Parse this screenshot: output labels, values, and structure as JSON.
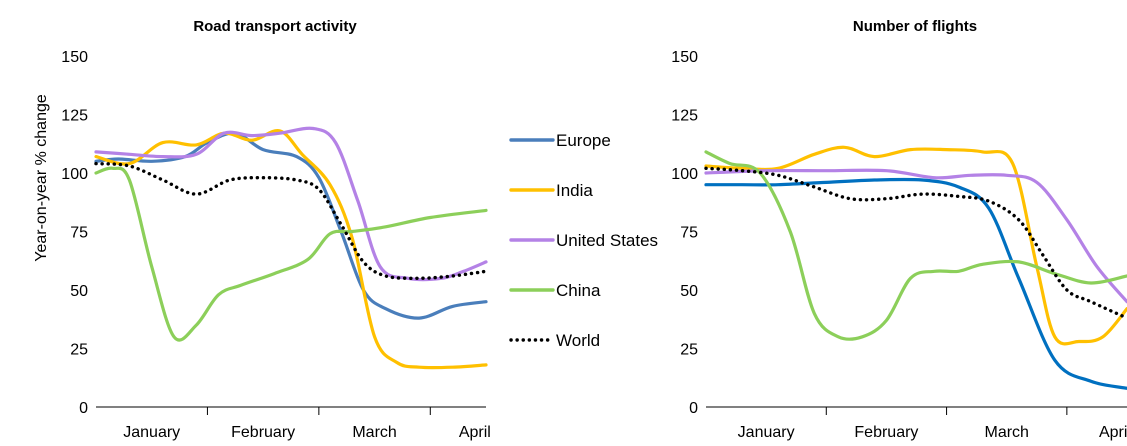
{
  "y_axis_label": "Year-on-year  % change",
  "legend": [
    {
      "name": "Europe",
      "color": "#4a7ebb",
      "style": "solid"
    },
    {
      "name": "India",
      "color": "#ffc000",
      "style": "solid"
    },
    {
      "name": "United States",
      "color": "#b482e6",
      "style": "solid"
    },
    {
      "name": "China",
      "color": "#8ccf5a",
      "style": "solid"
    },
    {
      "name": "World",
      "color": "#000000",
      "style": "dotted"
    }
  ],
  "chart_data": [
    {
      "type": "line",
      "title": "Road transport activity",
      "ylabel": "Year-on-year  % change",
      "ylim": [
        0,
        150
      ],
      "yticks": [
        0,
        25,
        50,
        75,
        100,
        125,
        150
      ],
      "categories": [
        "January",
        "February",
        "March",
        "April"
      ],
      "xlim": [
        0,
        3.5
      ],
      "grid": false,
      "series": [
        {
          "name": "Europe",
          "color": "#4a7ebb",
          "style": "solid",
          "x": [
            0,
            0.2,
            0.5,
            0.8,
            1.0,
            1.25,
            1.5,
            1.8,
            2.0,
            2.2,
            2.4,
            2.6,
            2.9,
            3.2,
            3.5
          ],
          "y": [
            105,
            106,
            105,
            107,
            113,
            117,
            110,
            107,
            98,
            75,
            50,
            42,
            38,
            43,
            45
          ]
        },
        {
          "name": "India",
          "color": "#ffc000",
          "style": "solid",
          "x": [
            0,
            0.3,
            0.6,
            0.9,
            1.15,
            1.4,
            1.65,
            1.85,
            2.1,
            2.3,
            2.5,
            2.7,
            2.9,
            3.2,
            3.5
          ],
          "y": [
            107,
            104,
            113,
            112,
            117,
            114,
            118,
            108,
            95,
            72,
            30,
            19,
            17,
            17,
            18
          ]
        },
        {
          "name": "United States",
          "color": "#b482e6",
          "style": "solid",
          "x": [
            0,
            0.3,
            0.6,
            0.9,
            1.15,
            1.4,
            1.65,
            1.95,
            2.15,
            2.35,
            2.55,
            2.8,
            3.1,
            3.3,
            3.5
          ],
          "y": [
            109,
            108,
            107,
            108,
            117,
            116,
            117,
            119,
            113,
            88,
            60,
            55,
            55,
            58,
            62
          ]
        },
        {
          "name": "China",
          "color": "#8ccf5a",
          "style": "solid",
          "x": [
            0,
            0.15,
            0.3,
            0.5,
            0.7,
            0.9,
            1.1,
            1.3,
            1.6,
            1.9,
            2.1,
            2.3,
            2.6,
            3.0,
            3.5
          ],
          "y": [
            100,
            102,
            97,
            60,
            30,
            35,
            48,
            52,
            57,
            63,
            74,
            75,
            77,
            81,
            84
          ]
        },
        {
          "name": "World",
          "color": "#000000",
          "style": "dotted",
          "x": [
            0,
            0.3,
            0.6,
            0.9,
            1.2,
            1.5,
            1.8,
            2.0,
            2.2,
            2.4,
            2.6,
            2.9,
            3.2,
            3.5
          ],
          "y": [
            104,
            103,
            97,
            91,
            97,
            98,
            97,
            93,
            78,
            62,
            56,
            55,
            56,
            58
          ]
        }
      ]
    },
    {
      "type": "line",
      "title": "Number of flights",
      "ylim": [
        0,
        150
      ],
      "yticks": [
        0,
        25,
        50,
        75,
        100,
        125,
        150
      ],
      "categories": [
        "January",
        "February",
        "March",
        "April"
      ],
      "xlim": [
        0,
        3.5
      ],
      "grid": false,
      "series": [
        {
          "name": "Europe",
          "color": "#0070c0",
          "style": "solid",
          "x": [
            0,
            0.3,
            0.6,
            1.0,
            1.4,
            1.8,
            2.1,
            2.35,
            2.6,
            2.9,
            3.2,
            3.5
          ],
          "y": [
            95,
            95,
            95,
            96,
            97,
            97,
            94,
            85,
            55,
            20,
            11,
            8
          ]
        },
        {
          "name": "India",
          "color": "#ffc000",
          "style": "solid",
          "x": [
            0,
            0.3,
            0.6,
            0.9,
            1.15,
            1.4,
            1.7,
            2.0,
            2.3,
            2.55,
            2.75,
            2.9,
            3.1,
            3.3,
            3.5
          ],
          "y": [
            103,
            102,
            102,
            108,
            111,
            107,
            110,
            110,
            109,
            104,
            60,
            30,
            28,
            30,
            42
          ]
        },
        {
          "name": "United States",
          "color": "#b482e6",
          "style": "solid",
          "x": [
            0,
            0.5,
            1.0,
            1.5,
            1.9,
            2.2,
            2.5,
            2.75,
            3.0,
            3.25,
            3.5
          ],
          "y": [
            100,
            101,
            101,
            101,
            98,
            99,
            99,
            96,
            80,
            60,
            45
          ]
        },
        {
          "name": "China",
          "color": "#8ccf5a",
          "style": "solid",
          "x": [
            0,
            0.2,
            0.45,
            0.7,
            0.9,
            1.1,
            1.3,
            1.5,
            1.7,
            1.9,
            2.1,
            2.3,
            2.6,
            2.9,
            3.2,
            3.5
          ],
          "y": [
            109,
            104,
            100,
            75,
            40,
            30,
            30,
            37,
            55,
            58,
            58,
            61,
            62,
            57,
            53,
            56
          ]
        },
        {
          "name": "World",
          "color": "#000000",
          "style": "dotted",
          "x": [
            0,
            0.3,
            0.6,
            0.9,
            1.2,
            1.5,
            1.8,
            2.1,
            2.35,
            2.6,
            2.8,
            3.0,
            3.2,
            3.5
          ],
          "y": [
            102,
            101,
            99,
            94,
            89,
            89,
            91,
            90,
            88,
            80,
            65,
            50,
            45,
            38
          ]
        }
      ]
    }
  ]
}
